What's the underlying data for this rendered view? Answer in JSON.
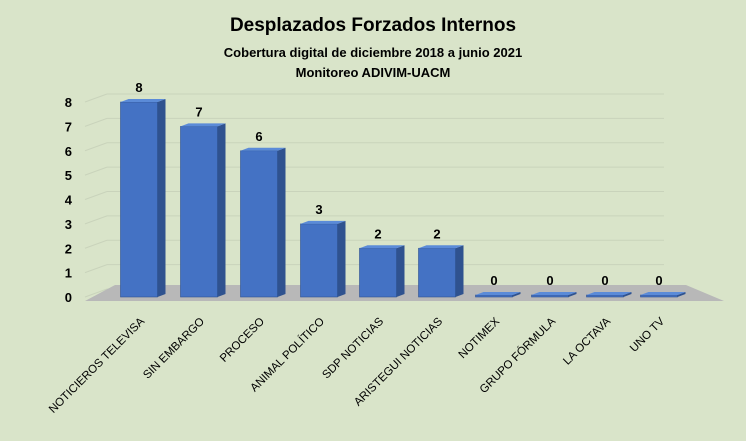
{
  "chart_data": {
    "type": "bar",
    "title": "Desplazados Forzados Internos",
    "subtitle_lines": [
      "Cobertura digital de diciembre 2018 a junio 2021",
      "Monitoreo ADIVIM-UACM"
    ],
    "xlabel": "",
    "ylabel": "",
    "ylim": [
      0,
      8
    ],
    "yticks": [
      0,
      1,
      2,
      3,
      4,
      5,
      6,
      7,
      8
    ],
    "grid": true,
    "legend": "none",
    "categories": [
      "NOTICIEROS TELEVISA",
      "SIN EMBARGO",
      "PROCESO",
      "ANIMAL POLÍTICO",
      "SDP NOTICIAS",
      "ARISTEGUI NOTICIAS",
      "NOTIMEX",
      "GRUPO FÓRMULA",
      "LA OCTAVA",
      "UNO TV"
    ],
    "values": [
      8,
      7,
      6,
      3,
      2,
      2,
      0,
      0,
      0,
      0
    ],
    "colors": {
      "background": "#d9e4c9",
      "bar_front": "#4472c4",
      "bar_side": "#2f528f",
      "bar_top": "#5b8bd8",
      "floor": "#b8b8b8",
      "text": "#000000"
    }
  }
}
